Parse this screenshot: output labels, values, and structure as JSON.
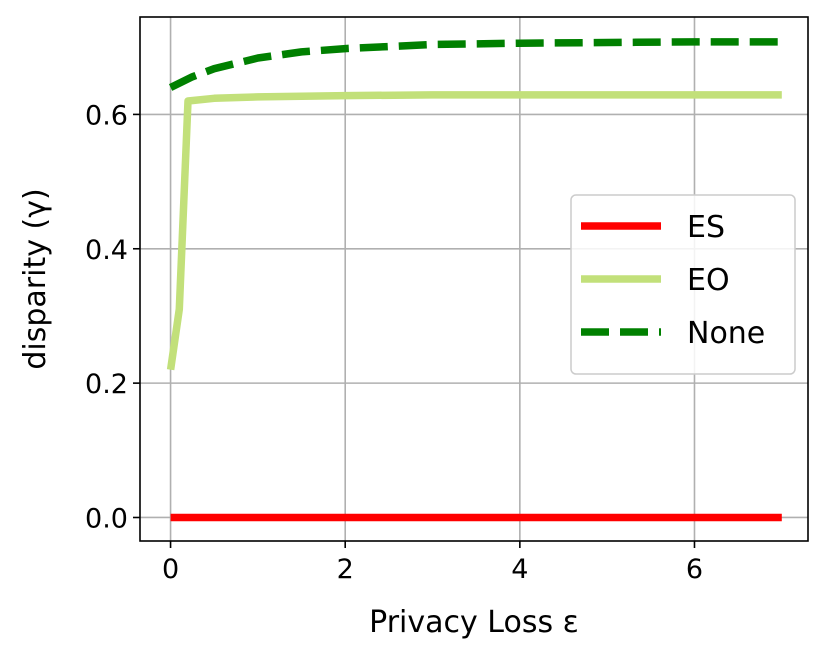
{
  "chart_data": {
    "type": "line",
    "xlabel": "Privacy Loss ε",
    "ylabel": "disparity (γ)",
    "xlim": [
      -0.35,
      7.3
    ],
    "ylim": [
      -0.035,
      0.745
    ],
    "x_ticks": [
      {
        "value": 0,
        "label": "0"
      },
      {
        "value": 2,
        "label": "2"
      },
      {
        "value": 4,
        "label": "4"
      },
      {
        "value": 6,
        "label": "6"
      }
    ],
    "y_ticks": [
      {
        "value": 0.0,
        "label": "0.0"
      },
      {
        "value": 0.2,
        "label": "0.2"
      },
      {
        "value": 0.4,
        "label": "0.4"
      },
      {
        "value": 0.6,
        "label": "0.6"
      }
    ],
    "grid": true,
    "legend_position": "center-right",
    "series": [
      {
        "name": "ES",
        "color": "#ff0000",
        "style": "solid",
        "x": [
          0,
          7
        ],
        "y": [
          0.0,
          0.0
        ]
      },
      {
        "name": "EO",
        "color": "#c2e07a",
        "style": "solid",
        "x": [
          0,
          0.1,
          0.2,
          0.5,
          1,
          2,
          3,
          4,
          5,
          6,
          7
        ],
        "y": [
          0.22,
          0.31,
          0.62,
          0.624,
          0.626,
          0.628,
          0.629,
          0.629,
          0.629,
          0.629,
          0.629
        ]
      },
      {
        "name": "None",
        "color": "#008000",
        "style": "dashed",
        "x": [
          0,
          0.25,
          0.5,
          1,
          1.5,
          2,
          3,
          4,
          5,
          6,
          7
        ],
        "y": [
          0.64,
          0.656,
          0.668,
          0.684,
          0.693,
          0.698,
          0.704,
          0.706,
          0.707,
          0.708,
          0.708
        ]
      }
    ]
  }
}
